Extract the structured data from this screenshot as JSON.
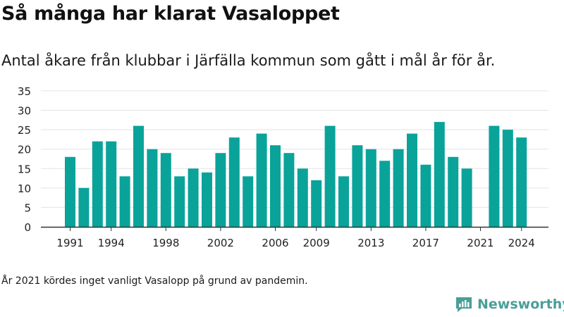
{
  "title": "Så många har klarat Vasaloppet",
  "subtitle": "Antal åkare från klubbar i Järfälla kommun som gått i mål år för år.",
  "footnote": "År 2021 kördes inget vanligt Vasalopp på grund av pandemin.",
  "brand": {
    "name": "Newsworthy",
    "icon": "newsworthy-logo-icon",
    "color": "#4a9e98"
  },
  "chart_data": {
    "type": "bar",
    "title": "",
    "xlabel": "",
    "ylabel": "",
    "x": [
      1991,
      1992,
      1993,
      1994,
      1995,
      1996,
      1997,
      1998,
      1999,
      2000,
      2001,
      2002,
      2003,
      2004,
      2005,
      2006,
      2007,
      2008,
      2009,
      2010,
      2011,
      2012,
      2013,
      2014,
      2015,
      2016,
      2017,
      2018,
      2019,
      2020,
      2021,
      2022,
      2023,
      2024
    ],
    "values": [
      18,
      10,
      22,
      22,
      13,
      26,
      20,
      19,
      13,
      15,
      14,
      19,
      23,
      13,
      24,
      21,
      19,
      15,
      12,
      26,
      13,
      21,
      20,
      17,
      20,
      24,
      16,
      27,
      18,
      15,
      0,
      26,
      25,
      23
    ],
    "ylim": [
      0,
      35
    ],
    "yticks": [
      0,
      5,
      10,
      15,
      20,
      25,
      30,
      35
    ],
    "ytick_labels": [
      "0",
      "5",
      "10",
      "15",
      "20",
      "25",
      "30",
      "35"
    ],
    "xticks": [
      1991,
      1994,
      1998,
      2002,
      2006,
      2009,
      2013,
      2017,
      2021,
      2024
    ],
    "xtick_labels": [
      "1991",
      "1994",
      "1998",
      "2002",
      "2006",
      "2009",
      "2013",
      "2017",
      "2021",
      "2024"
    ],
    "bar_color": "#0aa39a",
    "grid": true,
    "legend": "none"
  }
}
